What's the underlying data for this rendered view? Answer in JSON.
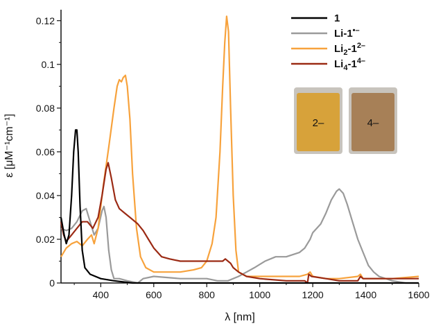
{
  "chart_data": {
    "type": "line",
    "title": "",
    "xlabel": "λ [nm]",
    "ylabel": "ε [μM⁻¹cm⁻¹]",
    "xlim": [
      250,
      1600
    ],
    "ylim": [
      0,
      0.125
    ],
    "x_ticks": [
      400,
      600,
      800,
      1000,
      1200,
      1400,
      1600
    ],
    "x_tick_labels": [
      "400",
      "600",
      "800",
      "1000",
      "1200",
      "1400",
      "1600"
    ],
    "y_ticks": [
      0,
      0.02,
      0.04,
      0.06,
      0.08,
      0.1,
      0.12
    ],
    "y_tick_labels": [
      "0",
      "0.02",
      "0.04",
      "0.06",
      "0.08",
      "0.1",
      "0.12"
    ],
    "legend_position": "top-right",
    "series": [
      {
        "name": "1",
        "color": "#000000",
        "points": [
          [
            250,
            0.03
          ],
          [
            262,
            0.022
          ],
          [
            270,
            0.018
          ],
          [
            280,
            0.022
          ],
          [
            290,
            0.04
          ],
          [
            298,
            0.06
          ],
          [
            305,
            0.07
          ],
          [
            310,
            0.07
          ],
          [
            315,
            0.06
          ],
          [
            322,
            0.035
          ],
          [
            330,
            0.015
          ],
          [
            340,
            0.007
          ],
          [
            360,
            0.004
          ],
          [
            400,
            0.002
          ],
          [
            450,
            0.001
          ],
          [
            520,
            0.0
          ],
          [
            1600,
            0.0
          ]
        ]
      },
      {
        "name": "Li-1•–",
        "color": "#9a9a9a",
        "points": [
          [
            250,
            0.025
          ],
          [
            270,
            0.024
          ],
          [
            290,
            0.025
          ],
          [
            310,
            0.028
          ],
          [
            330,
            0.033
          ],
          [
            345,
            0.034
          ],
          [
            360,
            0.028
          ],
          [
            375,
            0.022
          ],
          [
            390,
            0.025
          ],
          [
            405,
            0.033
          ],
          [
            412,
            0.035
          ],
          [
            420,
            0.03
          ],
          [
            430,
            0.015
          ],
          [
            440,
            0.006
          ],
          [
            450,
            0.002
          ],
          [
            470,
            0.002
          ],
          [
            500,
            0.001
          ],
          [
            540,
            0.0
          ],
          [
            560,
            0.002
          ],
          [
            600,
            0.003
          ],
          [
            700,
            0.002
          ],
          [
            800,
            0.002
          ],
          [
            840,
            0.001
          ],
          [
            880,
            0.001
          ],
          [
            920,
            0.003
          ],
          [
            950,
            0.005
          ],
          [
            980,
            0.007
          ],
          [
            1020,
            0.01
          ],
          [
            1060,
            0.012
          ],
          [
            1100,
            0.012
          ],
          [
            1150,
            0.014
          ],
          [
            1170,
            0.016
          ],
          [
            1190,
            0.02
          ],
          [
            1200,
            0.023
          ],
          [
            1215,
            0.025
          ],
          [
            1230,
            0.027
          ],
          [
            1250,
            0.032
          ],
          [
            1270,
            0.038
          ],
          [
            1290,
            0.042
          ],
          [
            1300,
            0.043
          ],
          [
            1315,
            0.041
          ],
          [
            1330,
            0.036
          ],
          [
            1350,
            0.028
          ],
          [
            1370,
            0.02
          ],
          [
            1390,
            0.014
          ],
          [
            1410,
            0.008
          ],
          [
            1430,
            0.005
          ],
          [
            1450,
            0.003
          ],
          [
            1500,
            0.001
          ],
          [
            1550,
            0.0
          ],
          [
            1600,
            0.0
          ]
        ]
      },
      {
        "name": "Li2-12–",
        "color": "#f7a23c",
        "points": [
          [
            250,
            0.012
          ],
          [
            270,
            0.016
          ],
          [
            290,
            0.018
          ],
          [
            310,
            0.019
          ],
          [
            330,
            0.017
          ],
          [
            350,
            0.02
          ],
          [
            365,
            0.022
          ],
          [
            375,
            0.018
          ],
          [
            390,
            0.025
          ],
          [
            410,
            0.045
          ],
          [
            430,
            0.062
          ],
          [
            450,
            0.08
          ],
          [
            462,
            0.09
          ],
          [
            470,
            0.093
          ],
          [
            478,
            0.092
          ],
          [
            485,
            0.094
          ],
          [
            493,
            0.095
          ],
          [
            500,
            0.09
          ],
          [
            510,
            0.075
          ],
          [
            520,
            0.05
          ],
          [
            535,
            0.025
          ],
          [
            550,
            0.012
          ],
          [
            570,
            0.007
          ],
          [
            600,
            0.005
          ],
          [
            650,
            0.005
          ],
          [
            700,
            0.005
          ],
          [
            750,
            0.006
          ],
          [
            780,
            0.007
          ],
          [
            800,
            0.01
          ],
          [
            820,
            0.018
          ],
          [
            835,
            0.03
          ],
          [
            850,
            0.06
          ],
          [
            860,
            0.09
          ],
          [
            868,
            0.11
          ],
          [
            875,
            0.122
          ],
          [
            882,
            0.115
          ],
          [
            890,
            0.08
          ],
          [
            900,
            0.04
          ],
          [
            910,
            0.015
          ],
          [
            920,
            0.005
          ],
          [
            950,
            0.003
          ],
          [
            1000,
            0.003
          ],
          [
            1100,
            0.003
          ],
          [
            1150,
            0.003
          ],
          [
            1180,
            0.004
          ],
          [
            1190,
            0.005
          ],
          [
            1200,
            0.003
          ],
          [
            1250,
            0.002
          ],
          [
            1300,
            0.002
          ],
          [
            1370,
            0.003
          ],
          [
            1380,
            0.004
          ],
          [
            1390,
            0.002
          ],
          [
            1450,
            0.002
          ],
          [
            1500,
            0.002
          ],
          [
            1600,
            0.003
          ]
        ]
      },
      {
        "name": "Li4-14–",
        "color": "#9b2a14",
        "points": [
          [
            250,
            0.028
          ],
          [
            260,
            0.022
          ],
          [
            270,
            0.019
          ],
          [
            290,
            0.022
          ],
          [
            310,
            0.025
          ],
          [
            330,
            0.028
          ],
          [
            350,
            0.028
          ],
          [
            370,
            0.025
          ],
          [
            390,
            0.03
          ],
          [
            405,
            0.04
          ],
          [
            420,
            0.052
          ],
          [
            428,
            0.055
          ],
          [
            440,
            0.048
          ],
          [
            455,
            0.038
          ],
          [
            470,
            0.034
          ],
          [
            490,
            0.032
          ],
          [
            510,
            0.03
          ],
          [
            540,
            0.027
          ],
          [
            560,
            0.024
          ],
          [
            580,
            0.02
          ],
          [
            600,
            0.016
          ],
          [
            630,
            0.012
          ],
          [
            660,
            0.011
          ],
          [
            700,
            0.01
          ],
          [
            750,
            0.01
          ],
          [
            800,
            0.01
          ],
          [
            840,
            0.01
          ],
          [
            860,
            0.01
          ],
          [
            870,
            0.011
          ],
          [
            880,
            0.01
          ],
          [
            890,
            0.009
          ],
          [
            900,
            0.007
          ],
          [
            920,
            0.005
          ],
          [
            950,
            0.003
          ],
          [
            1000,
            0.002
          ],
          [
            1100,
            0.001
          ],
          [
            1170,
            0.001
          ],
          [
            1180,
            0.0
          ],
          [
            1185,
            0.004
          ],
          [
            1195,
            0.003
          ],
          [
            1250,
            0.002
          ],
          [
            1300,
            0.001
          ],
          [
            1370,
            0.001
          ],
          [
            1380,
            0.003
          ],
          [
            1390,
            0.002
          ],
          [
            1450,
            0.002
          ],
          [
            1600,
            0.002
          ]
        ]
      }
    ]
  },
  "legend": [
    {
      "main": "1",
      "sub": "",
      "mid": "",
      "sup": "",
      "color": "#000000"
    },
    {
      "main": "Li-1",
      "sub": "",
      "mid": "",
      "sup": "•–",
      "color": "#9a9a9a"
    },
    {
      "main": "Li",
      "sub": "2",
      "mid": "-1",
      "sup": "2–",
      "color": "#f7a23c"
    },
    {
      "main": "Li",
      "sub": "4",
      "mid": "-1",
      "sup": "4–",
      "color": "#9b2a14"
    }
  ],
  "inset": {
    "vials": [
      {
        "label": "2–",
        "color": "#d7a23a"
      },
      {
        "label": "4–",
        "color": "#a78057"
      }
    ]
  }
}
